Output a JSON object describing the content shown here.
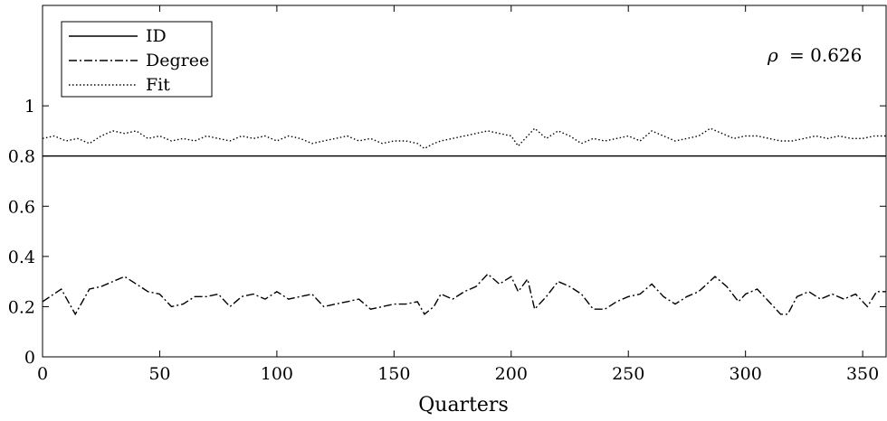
{
  "chart_data": {
    "type": "line",
    "xlabel": "Quarters",
    "ylabel": "",
    "xlim": [
      0,
      360
    ],
    "ylim": [
      0,
      1.4
    ],
    "xticks": [
      0,
      50,
      100,
      150,
      200,
      250,
      300,
      350
    ],
    "yticks": [
      0,
      0.2,
      0.4,
      0.6,
      0.8,
      1
    ],
    "xtick_labels": [
      "0",
      "50",
      "100",
      "150",
      "200",
      "250",
      "300",
      "350"
    ],
    "ytick_labels": [
      "0",
      "0.2",
      "0.4",
      "0.6",
      "0.8",
      "1"
    ],
    "grid": false,
    "legend_position": "top-left",
    "annotation": {
      "symbol": "ρ",
      "text": "= 0.626"
    },
    "series": [
      {
        "name": "ID",
        "style": "solid",
        "x": [
          0,
          360
        ],
        "values": [
          0.8,
          0.8
        ]
      },
      {
        "name": "Degree",
        "style": "dashdot",
        "x": [
          0,
          8,
          14,
          20,
          25,
          30,
          35,
          40,
          45,
          50,
          55,
          60,
          65,
          70,
          75,
          80,
          85,
          90,
          95,
          100,
          105,
          110,
          115,
          120,
          125,
          130,
          135,
          140,
          145,
          150,
          155,
          160,
          163,
          167,
          170,
          175,
          180,
          185,
          190,
          195,
          200,
          203,
          207,
          210,
          215,
          220,
          225,
          230,
          235,
          240,
          245,
          250,
          255,
          260,
          265,
          270,
          275,
          280,
          287,
          292,
          297,
          300,
          305,
          310,
          315,
          318,
          322,
          327,
          332,
          337,
          342,
          347,
          352,
          356,
          360
        ],
        "values": [
          0.22,
          0.27,
          0.17,
          0.27,
          0.28,
          0.3,
          0.32,
          0.29,
          0.26,
          0.25,
          0.2,
          0.21,
          0.24,
          0.24,
          0.25,
          0.2,
          0.24,
          0.25,
          0.23,
          0.26,
          0.23,
          0.24,
          0.25,
          0.2,
          0.21,
          0.22,
          0.23,
          0.19,
          0.2,
          0.21,
          0.21,
          0.22,
          0.17,
          0.2,
          0.25,
          0.23,
          0.26,
          0.28,
          0.33,
          0.29,
          0.32,
          0.26,
          0.31,
          0.19,
          0.24,
          0.3,
          0.28,
          0.25,
          0.19,
          0.19,
          0.22,
          0.24,
          0.25,
          0.29,
          0.24,
          0.21,
          0.24,
          0.26,
          0.32,
          0.28,
          0.22,
          0.25,
          0.27,
          0.22,
          0.17,
          0.17,
          0.24,
          0.26,
          0.23,
          0.25,
          0.23,
          0.25,
          0.2,
          0.26,
          0.26
        ]
      },
      {
        "name": "Fit",
        "style": "dotted",
        "x": [
          0,
          5,
          10,
          15,
          20,
          25,
          30,
          35,
          40,
          45,
          50,
          55,
          60,
          65,
          70,
          75,
          80,
          85,
          90,
          95,
          100,
          105,
          110,
          115,
          120,
          125,
          130,
          135,
          140,
          145,
          150,
          155,
          160,
          163,
          167,
          170,
          175,
          180,
          185,
          190,
          195,
          200,
          203,
          207,
          210,
          215,
          220,
          225,
          230,
          235,
          240,
          245,
          250,
          255,
          260,
          265,
          270,
          275,
          280,
          285,
          290,
          295,
          300,
          305,
          310,
          315,
          320,
          325,
          330,
          335,
          340,
          345,
          350,
          355,
          360
        ],
        "values": [
          0.87,
          0.88,
          0.86,
          0.87,
          0.85,
          0.88,
          0.9,
          0.89,
          0.9,
          0.87,
          0.88,
          0.86,
          0.87,
          0.86,
          0.88,
          0.87,
          0.86,
          0.88,
          0.87,
          0.88,
          0.86,
          0.88,
          0.87,
          0.85,
          0.86,
          0.87,
          0.88,
          0.86,
          0.87,
          0.85,
          0.86,
          0.86,
          0.85,
          0.83,
          0.85,
          0.86,
          0.87,
          0.88,
          0.89,
          0.9,
          0.89,
          0.88,
          0.84,
          0.88,
          0.91,
          0.87,
          0.9,
          0.88,
          0.85,
          0.87,
          0.86,
          0.87,
          0.88,
          0.86,
          0.9,
          0.88,
          0.86,
          0.87,
          0.88,
          0.91,
          0.89,
          0.87,
          0.88,
          0.88,
          0.87,
          0.86,
          0.86,
          0.87,
          0.88,
          0.87,
          0.88,
          0.87,
          0.87,
          0.88,
          0.88
        ]
      }
    ]
  }
}
